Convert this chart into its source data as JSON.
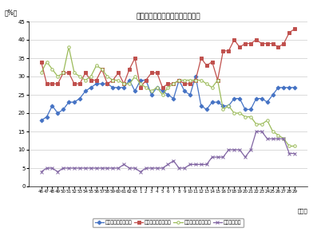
{
  "title": "働く目的（主な項目の経年変化）",
  "ylabel": "（%）",
  "xlabel_year": "（年）",
  "ylim": [
    0,
    45
  ],
  "yticks": [
    0,
    5,
    10,
    15,
    20,
    25,
    30,
    35,
    40,
    45
  ],
  "x_labels": [
    "46",
    "47",
    "48",
    "49",
    "50",
    "51",
    "52",
    "53",
    "54",
    "55",
    "56",
    "57",
    "58",
    "59",
    "60",
    "61",
    "62",
    "63",
    "1",
    "2",
    "3",
    "4",
    "5",
    "6",
    "7",
    "8",
    "9",
    "10",
    "11",
    "12",
    "13",
    "14",
    "15",
    "16",
    "17",
    "18",
    "19",
    "20",
    "21",
    "22",
    "23",
    "24",
    "25",
    "26",
    "27",
    "28",
    "29"
  ],
  "series": [
    {
      "name": "経済的に豊かになる",
      "color": "#4472C4",
      "marker": "D",
      "markersize": 2.5,
      "linewidth": 0.9,
      "values": [
        18,
        19,
        22,
        20,
        21,
        23,
        23,
        24,
        26,
        27,
        28,
        28,
        28,
        27,
        27,
        27,
        29,
        26,
        29,
        29,
        25,
        27,
        26,
        25,
        24,
        29,
        26,
        25,
        30,
        22,
        21,
        23,
        23,
        22,
        22,
        24,
        24,
        21,
        21,
        24,
        24,
        23,
        25,
        27,
        27,
        27,
        27
      ]
    },
    {
      "name": "楽しい生活をしたい",
      "color": "#C0504D",
      "marker": "s",
      "markersize": 2.5,
      "linewidth": 0.9,
      "values": [
        34,
        28,
        28,
        28,
        31,
        31,
        28,
        28,
        31,
        29,
        29,
        32,
        28,
        29,
        31,
        28,
        32,
        35,
        27,
        29,
        31,
        31,
        27,
        28,
        28,
        29,
        28,
        28,
        29,
        35,
        33,
        34,
        29,
        37,
        37,
        40,
        38,
        39,
        39,
        40,
        39,
        39,
        39,
        38,
        39,
        42,
        43
      ]
    },
    {
      "name": "自分の能力をためす",
      "color": "#9BBB59",
      "marker": "o",
      "markersize": 2.5,
      "linewidth": 0.9,
      "values": [
        31,
        34,
        32,
        30,
        31,
        38,
        31,
        30,
        29,
        30,
        33,
        32,
        30,
        29,
        29,
        28,
        28,
        30,
        28,
        27,
        26,
        27,
        25,
        27,
        28,
        29,
        29,
        29,
        29,
        29,
        28,
        27,
        29,
        21,
        22,
        20,
        20,
        19,
        19,
        17,
        17,
        18,
        15,
        14,
        13,
        11,
        11
      ]
    },
    {
      "name": "社会に役立つ",
      "color": "#8064A2",
      "marker": "x",
      "markersize": 2.5,
      "linewidth": 0.9,
      "values": [
        4,
        5,
        5,
        4,
        5,
        5,
        5,
        5,
        5,
        5,
        5,
        5,
        5,
        5,
        5,
        6,
        5,
        5,
        4,
        5,
        5,
        5,
        5,
        6,
        7,
        5,
        5,
        6,
        6,
        6,
        6,
        8,
        8,
        8,
        10,
        10,
        10,
        8,
        10,
        15,
        15,
        13,
        13,
        13,
        13,
        9,
        9
      ]
    }
  ]
}
